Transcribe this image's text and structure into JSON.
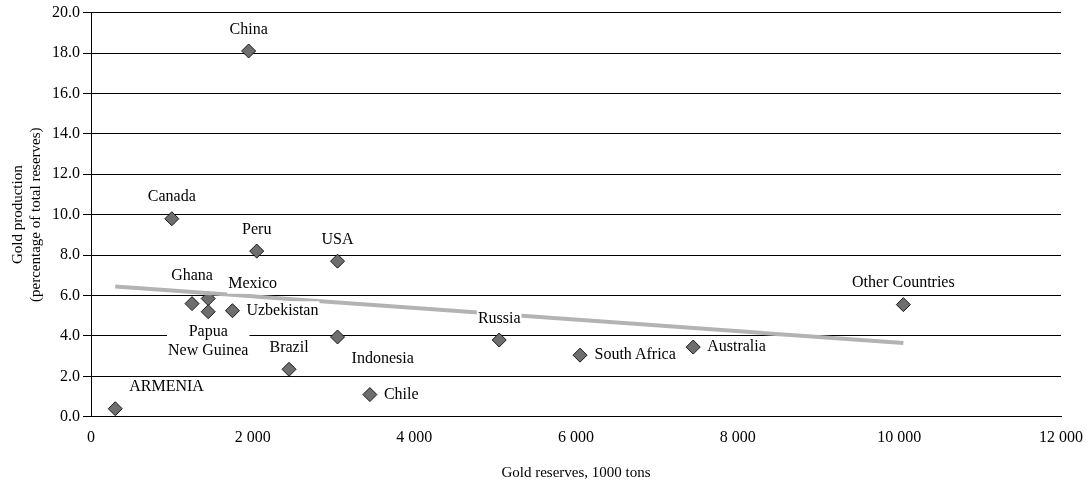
{
  "chart_data": {
    "type": "scatter",
    "xlabel": "Gold reserves, 1000 tons",
    "ylabel": "Gold production\n(percentage of total reserves)",
    "xlim": [
      0,
      12000
    ],
    "xticks": [
      0,
      {
        "value": 2000,
        "label": "2 000"
      },
      {
        "value": 4000,
        "label": "4 000"
      },
      {
        "value": 6000,
        "label": "6 000"
      },
      {
        "value": 8000,
        "label": "8 000"
      },
      {
        "value": 10000,
        "label": "10 000"
      },
      {
        "value": 12000,
        "label": "12 000"
      }
    ],
    "ylim": [
      0,
      20
    ],
    "yticks": [
      {
        "value": 0,
        "label": "0.0"
      },
      {
        "value": 2,
        "label": "2.0"
      },
      {
        "value": 4,
        "label": "4.0"
      },
      {
        "value": 6,
        "label": "6.0"
      },
      {
        "value": 8,
        "label": "8.0"
      },
      {
        "value": 10,
        "label": "10.0"
      },
      {
        "value": 12,
        "label": "12.0"
      },
      {
        "value": 14,
        "label": "14.0"
      },
      {
        "value": 16,
        "label": "16.0"
      },
      {
        "value": 18,
        "label": "18.0"
      },
      {
        "value": 20,
        "label": "20.0"
      }
    ],
    "grid": "y",
    "legend": false,
    "series": [
      {
        "color": "#6e6e6e",
        "marker": "diamond",
        "x": [
          300,
          1000,
          1950,
          2050,
          3050,
          1450,
          1250,
          1450,
          1750,
          2450,
          3050,
          3450,
          5050,
          6050,
          7450,
          10050
        ],
        "values": [
          0.4,
          9.8,
          18.1,
          8.2,
          7.7,
          5.85,
          5.6,
          5.2,
          5.25,
          2.35,
          3.95,
          1.1,
          3.8,
          3.05,
          3.45,
          5.55
        ]
      },
      {
        "type": "line",
        "marker": "none",
        "color": "#b3b3b3",
        "x": [
          300,
          10050
        ],
        "values": [
          6.45,
          3.65
        ]
      }
    ],
    "annotations": [
      {
        "text": "ARMENIA",
        "x": 300,
        "y": 0.4
      },
      {
        "text": "Canada",
        "x": 1000,
        "y": 9.8
      },
      {
        "text": "China",
        "x": 1950,
        "y": 18.1
      },
      {
        "text": "Peru",
        "x": 2050,
        "y": 8.2
      },
      {
        "text": "USA",
        "x": 3050,
        "y": 7.7
      },
      {
        "text": "Papua\nNew Guinea",
        "x": 1450,
        "y": 5.85
      },
      {
        "text": "Ghana",
        "x": 1250,
        "y": 5.6
      },
      {
        "text": "Mexico",
        "x": 1450,
        "y": 5.2
      },
      {
        "text": "Uzbekistan",
        "x": 1750,
        "y": 5.25
      },
      {
        "text": "Brazil",
        "x": 2450,
        "y": 2.35
      },
      {
        "text": "Indonesia",
        "x": 3050,
        "y": 3.95
      },
      {
        "text": "Chile",
        "x": 3450,
        "y": 1.1
      },
      {
        "text": "Russia",
        "x": 5050,
        "y": 3.8
      },
      {
        "text": "South Africa",
        "x": 6050,
        "y": 3.05
      },
      {
        "text": "Australia",
        "x": 7450,
        "y": 3.45
      },
      {
        "text": "Other Countries",
        "x": 10050,
        "y": 5.55
      }
    ]
  }
}
